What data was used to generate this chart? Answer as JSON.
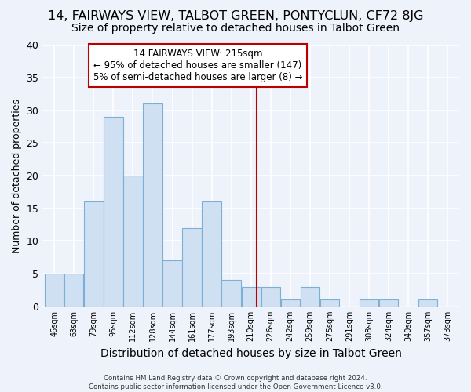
{
  "title": "14, FAIRWAYS VIEW, TALBOT GREEN, PONTYCLUN, CF72 8JG",
  "subtitle": "Size of property relative to detached houses in Talbot Green",
  "xlabel": "Distribution of detached houses by size in Talbot Green",
  "ylabel": "Number of detached properties",
  "footer_line1": "Contains HM Land Registry data © Crown copyright and database right 2024.",
  "footer_line2": "Contains public sector information licensed under the Open Government Licence v3.0.",
  "bar_labels": [
    "46sqm",
    "63sqm",
    "79sqm",
    "95sqm",
    "112sqm",
    "128sqm",
    "144sqm",
    "161sqm",
    "177sqm",
    "193sqm",
    "210sqm",
    "226sqm",
    "242sqm",
    "259sqm",
    "275sqm",
    "291sqm",
    "308sqm",
    "324sqm",
    "340sqm",
    "357sqm",
    "373sqm"
  ],
  "bar_values": [
    5,
    5,
    16,
    29,
    20,
    31,
    7,
    12,
    16,
    4,
    3,
    3,
    1,
    3,
    1,
    0,
    1,
    1,
    0,
    1,
    0
  ],
  "bar_color": "#cfe0f3",
  "bar_edge_color": "#7bafd4",
  "background_color": "#eef2fb",
  "grid_color": "#ffffff",
  "vline_color": "#bb0000",
  "annotation_title": "14 FAIRWAYS VIEW: 215sqm",
  "annotation_line1": "← 95% of detached houses are smaller (147)",
  "annotation_line2": "5% of semi-detached houses are larger (8) →",
  "annotation_box_color": "#bb0000",
  "ylim": [
    0,
    40
  ],
  "yticks": [
    0,
    5,
    10,
    15,
    20,
    25,
    30,
    35,
    40
  ],
  "title_fontsize": 11.5,
  "subtitle_fontsize": 10,
  "xlabel_fontsize": 10,
  "ylabel_fontsize": 9,
  "ann_fontsize": 8.5
}
